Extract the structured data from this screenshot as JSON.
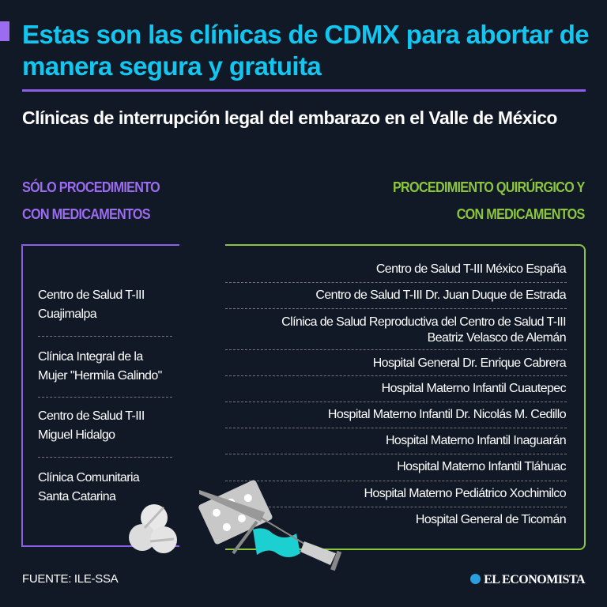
{
  "title": "Estas son las clínicas de CDMX para abortar de manera segura y gratuita",
  "subtitle": "Clínicas de interrupción legal del embarazo en el Valle de México",
  "left": {
    "heading_line1": "SÓLO PROCEDIMIENTO",
    "heading_line2": "CON MEDICAMENTOS",
    "items": [
      {
        "line1": "Centro de Salud T-III",
        "line2": "Cuajimalpa"
      },
      {
        "line1": "Clínica Integral de la",
        "line2": "Mujer \"Hermila Galindo\""
      },
      {
        "line1": "Centro de Salud T-III",
        "line2": "Miguel Hidalgo"
      },
      {
        "line1": "Clínica Comunitaria",
        "line2": "Santa Catarina"
      }
    ]
  },
  "right": {
    "heading_line1": "PROCEDIMIENTO QUIRÚRGICO Y",
    "heading_line2": "CON MEDICAMENTOS",
    "items": [
      {
        "line1": "Centro de Salud T-III México España"
      },
      {
        "line1": "Centro de Salud T-III Dr. Juan Duque de Estrada"
      },
      {
        "line1": "Clínica de Salud Reproductiva del Centro de Salud T-III",
        "line2": "Beatriz Velasco de Alemán"
      },
      {
        "line1": "Hospital General Dr. Enrique Cabrera"
      },
      {
        "line1": "Hospital Materno Infantil Cuautepec"
      },
      {
        "line1": "Hospital Materno Infantil Dr. Nicolás M. Cedillo"
      },
      {
        "line1": "Hospital Materno Infantil Inaguarán"
      },
      {
        "line1": "Hospital Materno Infantil Tláhuac"
      },
      {
        "line1": "Hospital Materno Pediátrico Xochimilco"
      },
      {
        "line1": "Hospital General de Ticomán"
      }
    ]
  },
  "source": "FUENTE: ILE-SSA",
  "brand": "EL ECONOMISTA",
  "colors": {
    "background": "#111826",
    "title": "#12c6ef",
    "purple": "#9b6cf0",
    "green": "#8cc63f"
  },
  "icons": [
    "pills-icon",
    "blister-pack-icon",
    "speculum-icon",
    "syringe-icon"
  ]
}
